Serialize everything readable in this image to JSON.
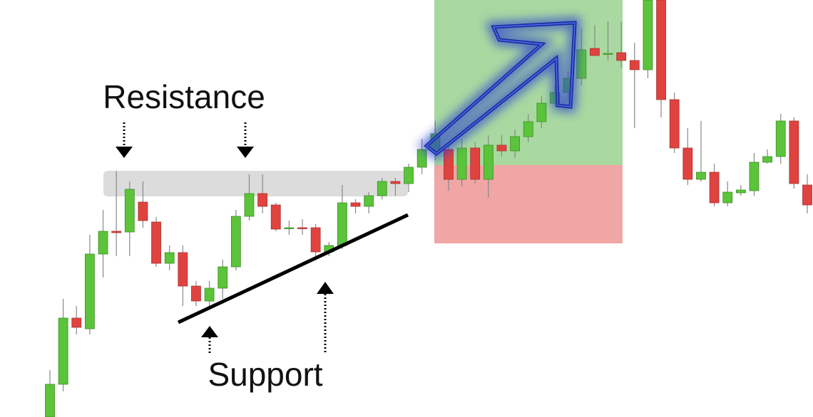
{
  "chart_data": {
    "type": "candlestick",
    "annotations": [
      "Resistance",
      "Support"
    ],
    "categories": [
      null,
      null,
      null,
      null,
      null,
      null,
      null,
      null,
      null,
      null,
      null,
      null,
      null,
      null,
      null,
      null,
      null,
      null,
      null,
      null,
      null,
      null,
      null,
      null,
      null,
      null,
      null,
      null,
      null,
      null,
      null,
      null,
      null,
      null,
      null,
      null,
      null,
      null,
      null,
      null,
      null,
      null,
      null,
      null,
      null,
      null,
      null,
      null,
      null,
      null,
      null,
      null,
      null,
      null,
      null,
      null,
      null,
      null
    ],
    "open": [
      0,
      46,
      139,
      124,
      229,
      261,
      260,
      302,
      274,
      216,
      231,
      184,
      163,
      181,
      211,
      282,
      314,
      298,
      265,
      266,
      266,
      232,
      241,
      301,
      296,
      311,
      331,
      328,
      351,
      376,
      376,
      334,
      378,
      334,
      382,
      374,
      394,
      415,
      441,
      456,
      476,
      518,
      510,
      512,
      501,
      488,
      586,
      446,
      378,
      334,
      344,
      301,
      315,
      318,
      358,
      366,
      416,
      326
    ],
    "high": [
      66,
      166,
      156,
      256,
      291,
      346,
      331,
      331,
      281,
      241,
      241,
      191,
      191,
      221,
      291,
      341,
      341,
      301,
      276,
      278,
      271,
      246,
      326,
      306,
      316,
      336,
      336,
      356,
      391,
      416,
      381,
      391,
      386,
      396,
      396,
      404,
      426,
      451,
      466,
      486,
      546,
      551,
      556,
      556,
      526,
      586,
      586,
      456,
      406,
      416,
      356,
      331,
      326,
      371,
      376,
      426,
      421,
      341
    ],
    "low": [
      0,
      36,
      116,
      116,
      196,
      226,
      226,
      266,
      211,
      206,
      156,
      156,
      156,
      166,
      206,
      276,
      286,
      261,
      256,
      256,
      224,
      226,
      236,
      286,
      286,
      306,
      311,
      316,
      341,
      361,
      318,
      324,
      328,
      308,
      366,
      364,
      386,
      406,
      436,
      446,
      466,
      508,
      501,
      491,
      406,
      476,
      421,
      371,
      326,
      331,
      296,
      296,
      311,
      311,
      356,
      356,
      321,
      286
    ],
    "close": [
      46,
      139,
      126,
      229,
      261,
      259,
      320,
      276,
      216,
      231,
      184,
      163,
      181,
      211,
      282,
      314,
      296,
      264,
      266,
      265,
      232,
      241,
      301,
      296,
      311,
      331,
      328,
      351,
      376,
      398,
      334,
      378,
      334,
      382,
      374,
      394,
      415,
      441,
      456,
      476,
      516,
      508,
      511,
      501,
      488,
      586,
      446,
      378,
      334,
      344,
      301,
      316,
      319,
      358,
      366,
      416,
      328,
      298
    ],
    "up_color": "#5bc43a",
    "down_color": "#e0433f",
    "ylim": [
      0,
      586
    ]
  }
}
